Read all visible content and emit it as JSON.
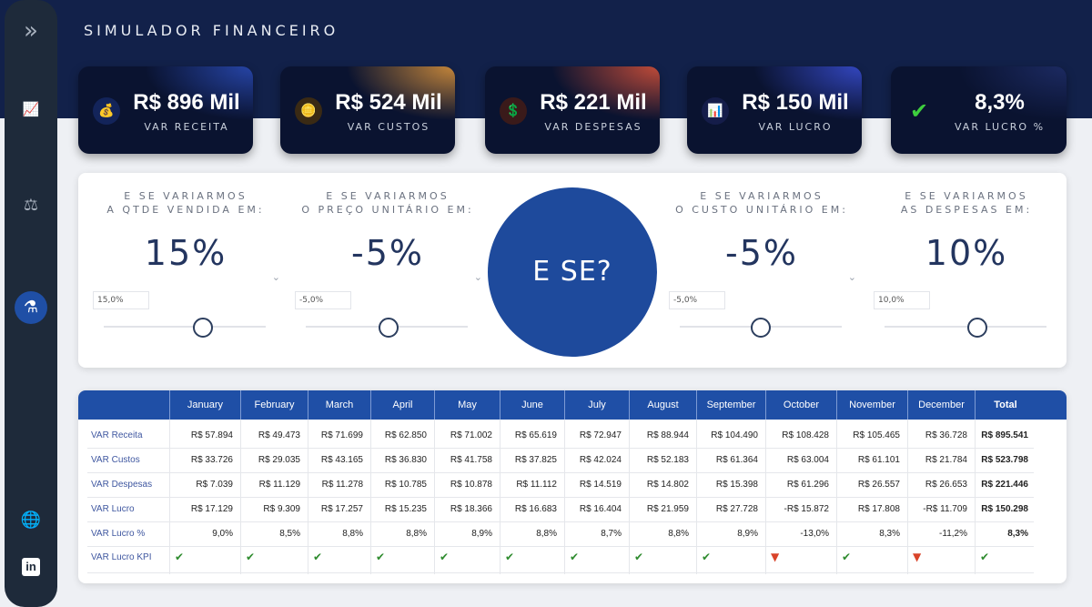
{
  "title": "SIMULADOR FINANCEIRO",
  "sidebar": {
    "icons": [
      "expand-icon",
      "chart-icon",
      "scale-icon",
      "flask-icon",
      "globe-icon",
      "linkedin-icon"
    ],
    "glyphs": [
      "»",
      "📈",
      "⚖",
      "⚗",
      "🌐",
      "in"
    ]
  },
  "kpis": [
    {
      "value": "R$ 896 Mil",
      "label": "VAR RECEITA",
      "icon": "money-bag-icon",
      "glyph": "💰",
      "accent": "#2b4dbb"
    },
    {
      "value": "R$ 524 Mil",
      "label": "VAR CUSTOS",
      "icon": "coin-icon",
      "glyph": "🪙",
      "accent": "#e59a3c"
    },
    {
      "value": "R$ 221 Mil",
      "label": "VAR DESPESAS",
      "icon": "hand-money-icon",
      "glyph": "💲",
      "accent": "#e0553a"
    },
    {
      "value": "R$ 150 Mil",
      "label": "VAR LUCRO",
      "icon": "growth-chart-icon",
      "glyph": "📊",
      "accent": "#3a4fd8"
    },
    {
      "value": "8,3%",
      "label": "VAR LUCRO %",
      "icon": "check-icon",
      "glyph": "✔",
      "accent": "#1f2e6a"
    }
  ],
  "controls": [
    {
      "line1": "E SE VARIARMOS",
      "line2": "A QTDE VENDIDA EM:",
      "value": "15%",
      "input": "15,0%"
    },
    {
      "line1": "E SE VARIARMOS",
      "line2": "O PREÇO UNITÁRIO EM:",
      "value": "-5%",
      "input": "-5,0%"
    },
    {
      "line1": "E SE VARIARMOS",
      "line2": "O CUSTO UNITÁRIO EM:",
      "value": "-5%",
      "input": "-5,0%"
    },
    {
      "line1": "E SE VARIARMOS",
      "line2": "AS DESPESAS EM:",
      "value": "10%",
      "input": "10,0%"
    }
  ],
  "center_label": "E SE?",
  "table": {
    "columns": [
      "January",
      "February",
      "March",
      "April",
      "May",
      "June",
      "July",
      "August",
      "September",
      "October",
      "November",
      "December",
      "Total"
    ],
    "rows": [
      {
        "label": "VAR Receita",
        "cells": [
          "R$ 57.894",
          "R$ 49.473",
          "R$ 71.699",
          "R$ 62.850",
          "R$ 71.002",
          "R$ 65.619",
          "R$ 72.947",
          "R$ 88.944",
          "R$ 104.490",
          "R$ 108.428",
          "R$ 105.465",
          "R$ 36.728",
          "R$ 895.541"
        ]
      },
      {
        "label": "VAR Custos",
        "cells": [
          "R$ 33.726",
          "R$ 29.035",
          "R$ 43.165",
          "R$ 36.830",
          "R$ 41.758",
          "R$ 37.825",
          "R$ 42.024",
          "R$ 52.183",
          "R$ 61.364",
          "R$ 63.004",
          "R$ 61.101",
          "R$ 21.784",
          "R$ 523.798"
        ]
      },
      {
        "label": "VAR Despesas",
        "cells": [
          "R$ 7.039",
          "R$ 11.129",
          "R$ 11.278",
          "R$ 10.785",
          "R$ 10.878",
          "R$ 11.112",
          "R$ 14.519",
          "R$ 14.802",
          "R$ 15.398",
          "R$ 61.296",
          "R$ 26.557",
          "R$ 26.653",
          "R$ 221.446"
        ]
      },
      {
        "label": "VAR Lucro",
        "cells": [
          "R$ 17.129",
          "R$ 9.309",
          "R$ 17.257",
          "R$ 15.235",
          "R$ 18.366",
          "R$ 16.683",
          "R$ 16.404",
          "R$ 21.959",
          "R$ 27.728",
          "-R$ 15.872",
          "R$ 17.808",
          "-R$ 11.709",
          "R$ 150.298"
        ]
      },
      {
        "label": "VAR Lucro %",
        "cells": [
          "9,0%",
          "8,5%",
          "8,8%",
          "8,8%",
          "8,9%",
          "8,8%",
          "8,7%",
          "8,8%",
          "8,9%",
          "-13,0%",
          "8,3%",
          "-11,2%",
          "8,3%"
        ]
      }
    ],
    "kpi_row_label": "VAR Lucro KPI",
    "kpi_row": [
      "up",
      "up",
      "up",
      "up",
      "up",
      "up",
      "up",
      "up",
      "up",
      "down",
      "up",
      "down",
      "up"
    ]
  },
  "colors": {
    "ok": "#2e8b2e",
    "bad": "#d9442a"
  }
}
